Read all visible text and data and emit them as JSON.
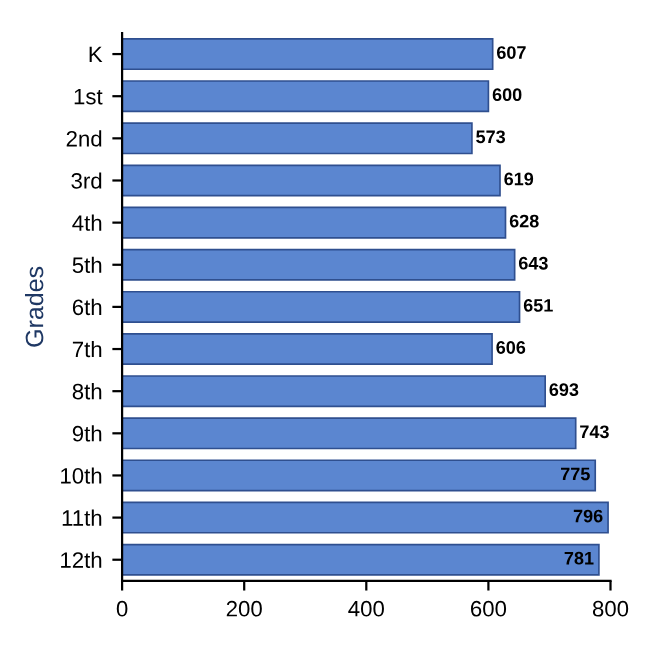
{
  "chart_data": {
    "type": "bar",
    "orientation": "horizontal",
    "ylabel": "Grades",
    "categories": [
      "K",
      "1st",
      "2nd",
      "3rd",
      "4th",
      "5th",
      "6th",
      "7th",
      "8th",
      "9th",
      "10th",
      "11th",
      "12th"
    ],
    "values": [
      607,
      600,
      573,
      619,
      628,
      643,
      651,
      606,
      693,
      743,
      775,
      796,
      781
    ],
    "color": "#5b86d0",
    "xlim": [
      0,
      800
    ],
    "xticks": [
      0,
      200,
      400,
      600,
      800
    ],
    "data_labels": true,
    "grid": false
  }
}
